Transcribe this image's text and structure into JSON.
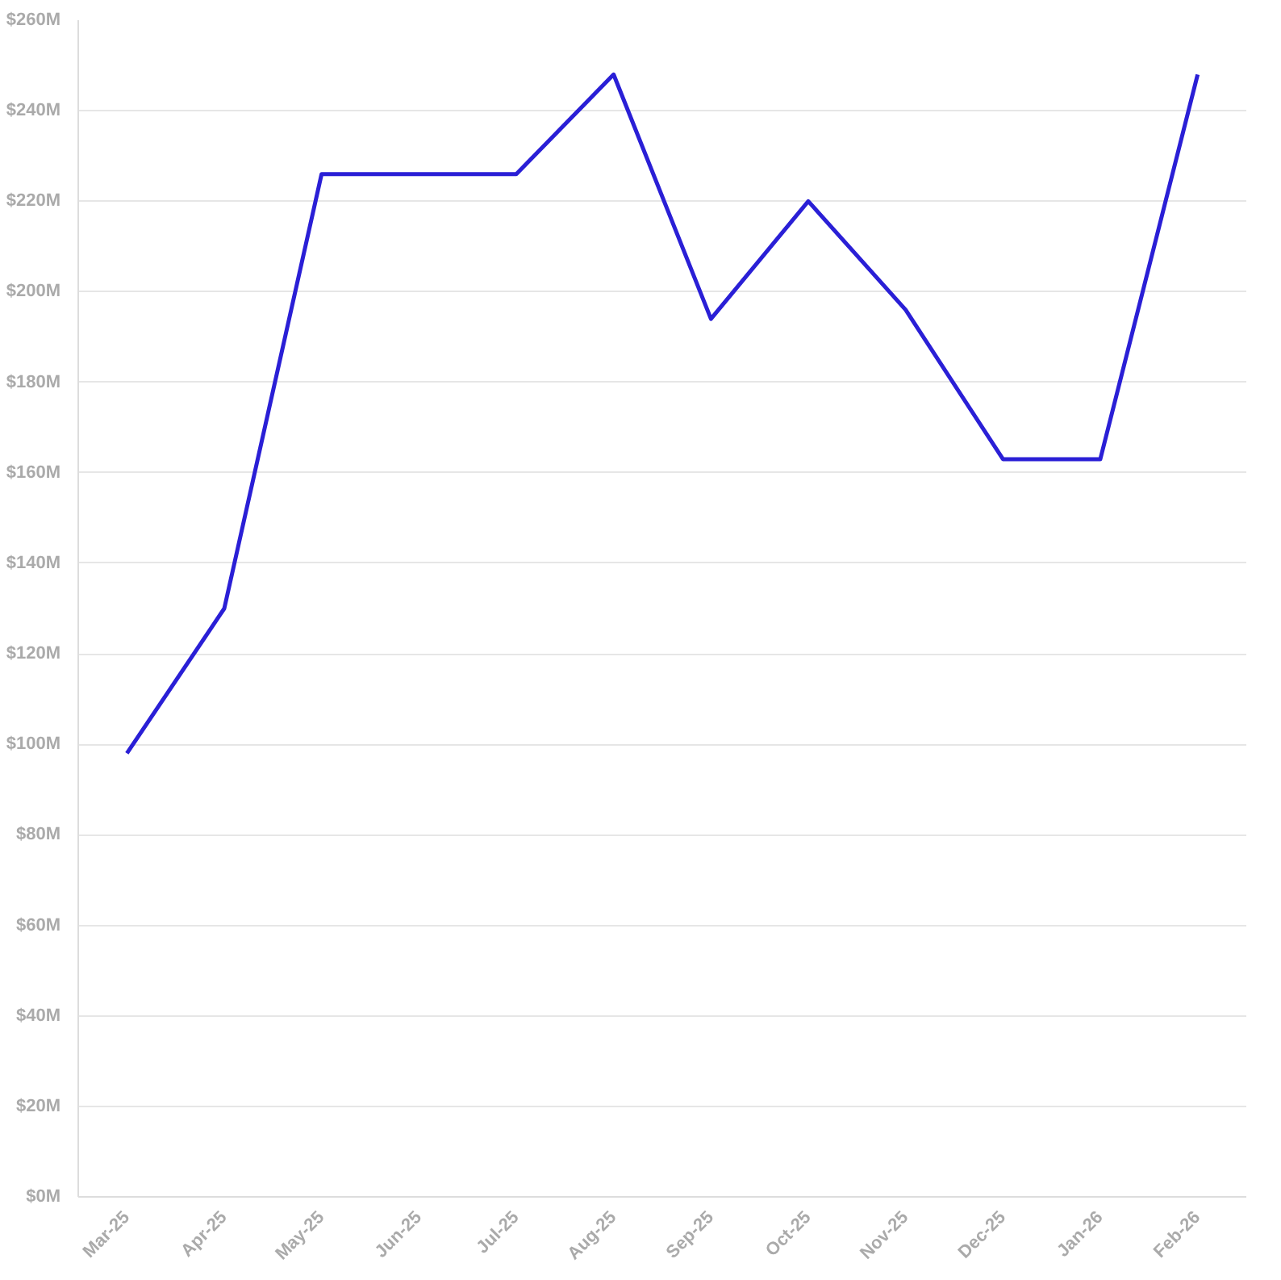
{
  "chart_data": {
    "type": "line",
    "categories": [
      "Mar-25",
      "Apr-25",
      "May-25",
      "Jun-25",
      "Jul-25",
      "Aug-25",
      "Sep-25",
      "Oct-25",
      "Nov-25",
      "Dec-25",
      "Jan-26",
      "Feb-26"
    ],
    "series": [
      {
        "color": "#2a1fd6",
        "values": [
          98,
          130,
          226,
          226,
          226,
          248,
          194,
          220,
          196,
          163,
          163,
          248
        ]
      }
    ],
    "ylim": [
      0,
      260
    ],
    "yticks": [
      {
        "value": 0,
        "label": "$0M"
      },
      {
        "value": 20,
        "label": "$20M"
      },
      {
        "value": 40,
        "label": "$40M"
      },
      {
        "value": 60,
        "label": "$60M"
      },
      {
        "value": 80,
        "label": "$80M"
      },
      {
        "value": 100,
        "label": "$100M"
      },
      {
        "value": 120,
        "label": "$120M"
      },
      {
        "value": 140,
        "label": "$140M"
      },
      {
        "value": 160,
        "label": "$160M"
      },
      {
        "value": 180,
        "label": "$180M"
      },
      {
        "value": 200,
        "label": "$200M"
      },
      {
        "value": 220,
        "label": "$220M"
      },
      {
        "value": 240,
        "label": "$240M"
      },
      {
        "value": 260,
        "label": "$260M"
      }
    ],
    "grid": "y",
    "marker": "none",
    "line_style": "solid"
  }
}
